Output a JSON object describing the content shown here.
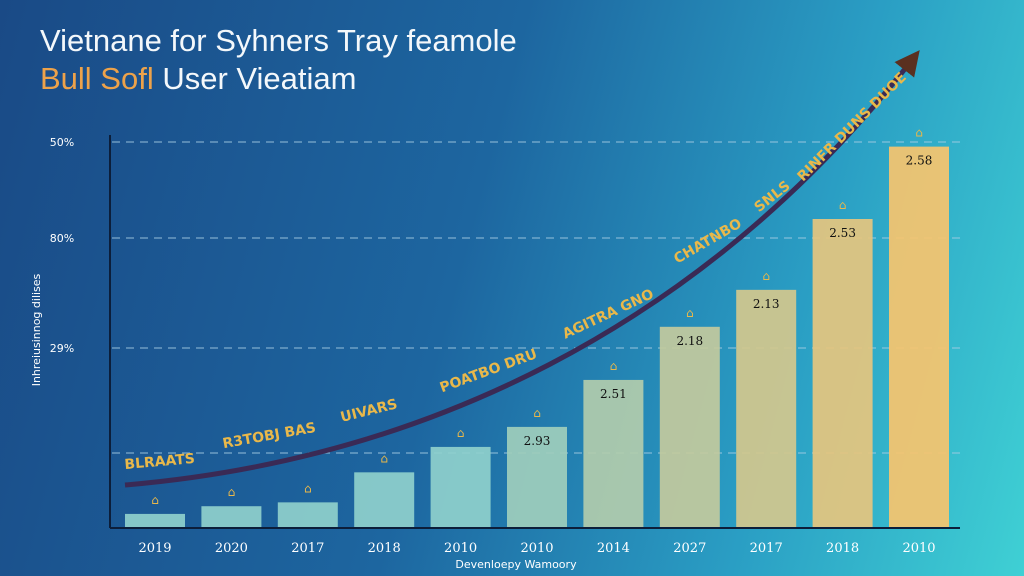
{
  "title": {
    "line1": "Vietnane for Syhners Tray feamole",
    "line2_highlight": "Bull Sofl",
    "line2_rest": "User Vieatiam"
  },
  "chart_data": {
    "type": "bar",
    "title": "Vietnane for Syhners Tray feamole Bull Sofl User Vieatiam",
    "xlabel": "Devenloepy Wamoory",
    "ylabel": "Inhreiusinnog dilises",
    "ytick_labels": [
      "50%",
      "80%",
      "29%"
    ],
    "ylim": [
      0,
      50
    ],
    "grid": true,
    "categories": [
      "2019",
      "2020",
      "2017",
      "2018",
      "2010",
      "2010",
      "2014",
      "2027",
      "2017",
      "2018",
      "2010"
    ],
    "values": [
      1.7,
      2.7,
      3.2,
      7.1,
      10.4,
      13.0,
      19.1,
      26.0,
      30.8,
      40.0,
      49.4
    ],
    "data_labels": [
      "",
      "",
      "",
      "",
      "",
      "2.93",
      "2.51",
      "2.18",
      "2.13",
      "2.53",
      "2.58"
    ],
    "trend_annotations": [
      "BLRAATS",
      "R3TOBJ BAS",
      "UIVARS",
      "POATBO DRU",
      "AGITRA GNO",
      "CHATNBO",
      "SNLS",
      "RINFR DUNS DUOE"
    ],
    "trend_arrow": true,
    "colors": {
      "bar_low": "#8fd0cc",
      "bar_high": "#f7c46e",
      "trend": "#3a2a5a",
      "annotation": "#e9b84a",
      "text": "#ffffff"
    }
  }
}
